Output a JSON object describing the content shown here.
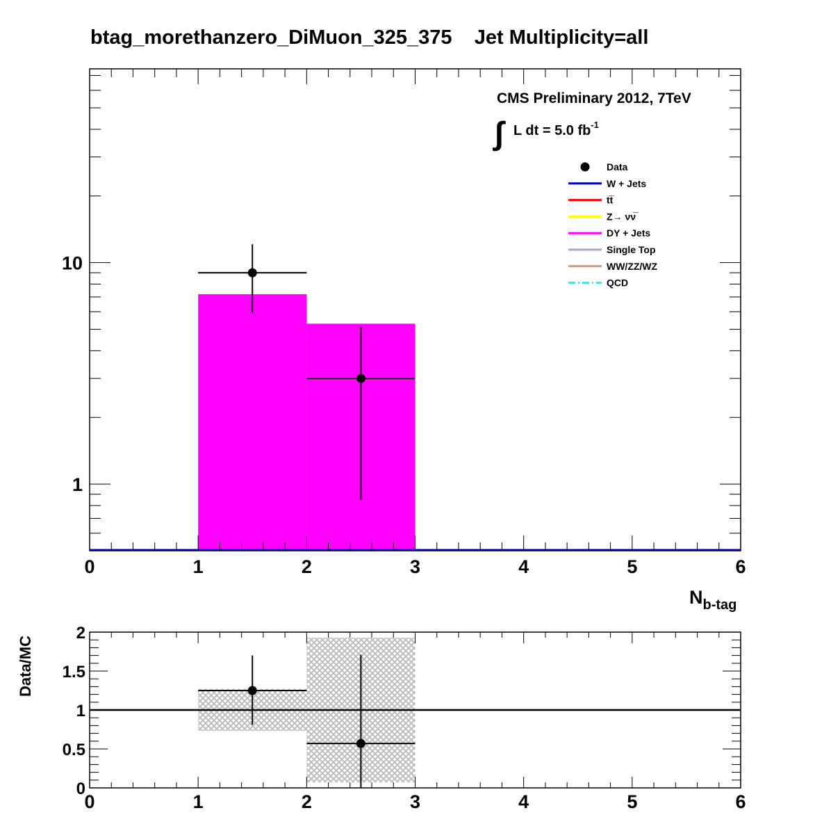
{
  "chart_data": [
    {
      "type": "bar",
      "title": "btag_morethanzero_DiMuon_325_375    Jet Multiplicity=all",
      "annotation": {
        "experiment": "CMS Preliminary 2012, 7TeV",
        "lumi_prefix": "L dt = 5.0 fb",
        "lumi_exp": "-1"
      },
      "xlabel": {
        "base": "N",
        "sub": "b-tag"
      },
      "ylabel": "",
      "xlim": [
        0,
        6
      ],
      "ylim": [
        0.5,
        75
      ],
      "yscale": "log",
      "x_ticks": [
        "0",
        "1",
        "2",
        "3",
        "4",
        "5",
        "6"
      ],
      "y_ticks": [
        {
          "value": 1,
          "label": "1"
        },
        {
          "value": 10,
          "label": "10"
        }
      ],
      "legend_position": "top-right",
      "legend": [
        {
          "label": "Data",
          "style": "marker",
          "color": "#000000"
        },
        {
          "label": "W + Jets",
          "style": "line",
          "color": "#0000cc"
        },
        {
          "label": "tt̅",
          "style": "line",
          "color": "#ff0000"
        },
        {
          "label": "Z→ νν̅",
          "style": "line",
          "color": "#ffff00"
        },
        {
          "label": "DY + Jets",
          "style": "line",
          "color": "#ff00ff"
        },
        {
          "label": "Single Top",
          "style": "line",
          "color": "#a6a6c2"
        },
        {
          "label": "WW/ZZ/WZ",
          "style": "line",
          "color": "#cc9980"
        },
        {
          "label": "QCD",
          "style": "dashdot",
          "color": "#00ffff"
        }
      ],
      "stack": [
        {
          "name": "DY + Jets",
          "color": "#ff00ff",
          "bins": [
            {
              "x0": 1,
              "x1": 2,
              "value": 7.2
            },
            {
              "x0": 2,
              "x1": 3,
              "value": 5.3
            }
          ]
        }
      ],
      "baseline_color": "#0000cc",
      "data_points": [
        {
          "x": 1.5,
          "xerr": 0.5,
          "y": 9,
          "ylow": 5.9,
          "yhigh": 12.1
        },
        {
          "x": 2.5,
          "xerr": 0.5,
          "y": 3,
          "ylow": 0.85,
          "yhigh": 5.15
        }
      ]
    },
    {
      "type": "scatter",
      "ylabel": "Data/MC",
      "xlim": [
        0,
        6
      ],
      "ylim": [
        0,
        2
      ],
      "x_ticks": [
        "0",
        "1",
        "2",
        "3",
        "4",
        "5",
        "6"
      ],
      "y_ticks": [
        {
          "value": 0,
          "label": "0"
        },
        {
          "value": 0.5,
          "label": "0.5"
        },
        {
          "value": 1,
          "label": "1"
        },
        {
          "value": 1.5,
          "label": "1.5"
        },
        {
          "value": 2,
          "label": "2"
        }
      ],
      "reference_line": 1,
      "uncertainty_bands": [
        {
          "x0": 1,
          "x1": 2,
          "low": 0.73,
          "high": 1.27
        },
        {
          "x0": 2,
          "x1": 3,
          "low": 0.07,
          "high": 1.93
        }
      ],
      "points": [
        {
          "x": 1.5,
          "xerr": 0.5,
          "y": 1.25,
          "ylow": 0.81,
          "yhigh": 1.7
        },
        {
          "x": 2.5,
          "xerr": 0.5,
          "y": 0.57,
          "ylow": 0.0,
          "yhigh": 1.71
        }
      ]
    }
  ]
}
